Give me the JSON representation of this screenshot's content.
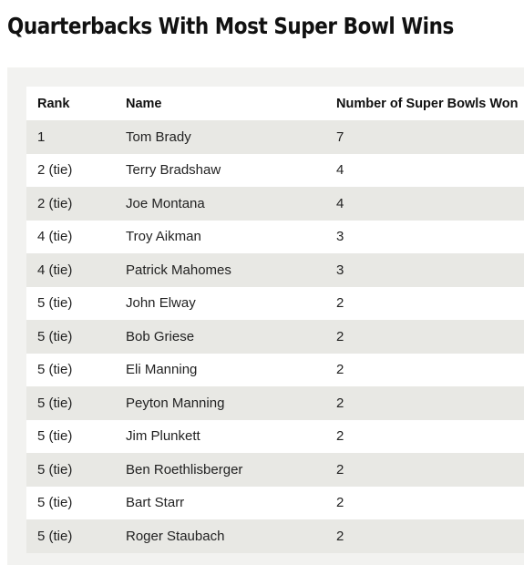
{
  "title": "Quarterbacks With Most Super Bowl Wins",
  "table": {
    "headers": [
      "Rank",
      "Name",
      "Number of Super Bowls Won"
    ],
    "rows": [
      [
        "1",
        "Tom Brady",
        "7"
      ],
      [
        "2 (tie)",
        "Terry Bradshaw",
        "4"
      ],
      [
        "2 (tie)",
        "Joe Montana",
        "4"
      ],
      [
        "4 (tie)",
        "Troy Aikman",
        "3"
      ],
      [
        "4 (tie)",
        "Patrick Mahomes",
        "3"
      ],
      [
        "5 (tie)",
        "John Elway",
        "2"
      ],
      [
        "5 (tie)",
        "Bob Griese",
        "2"
      ],
      [
        "5 (tie)",
        "Eli Manning",
        "2"
      ],
      [
        "5 (tie)",
        "Peyton Manning",
        "2"
      ],
      [
        "5 (tie)",
        "Jim Plunkett",
        "2"
      ],
      [
        "5 (tie)",
        "Ben Roethlisberger",
        "2"
      ],
      [
        "5 (tie)",
        "Bart Starr",
        "2"
      ],
      [
        "5 (tie)",
        "Roger Staubach",
        "2"
      ]
    ]
  },
  "colors": {
    "stripe": "#e8e8e4",
    "panel": "#f2f2f0",
    "row": "#ffffff"
  }
}
